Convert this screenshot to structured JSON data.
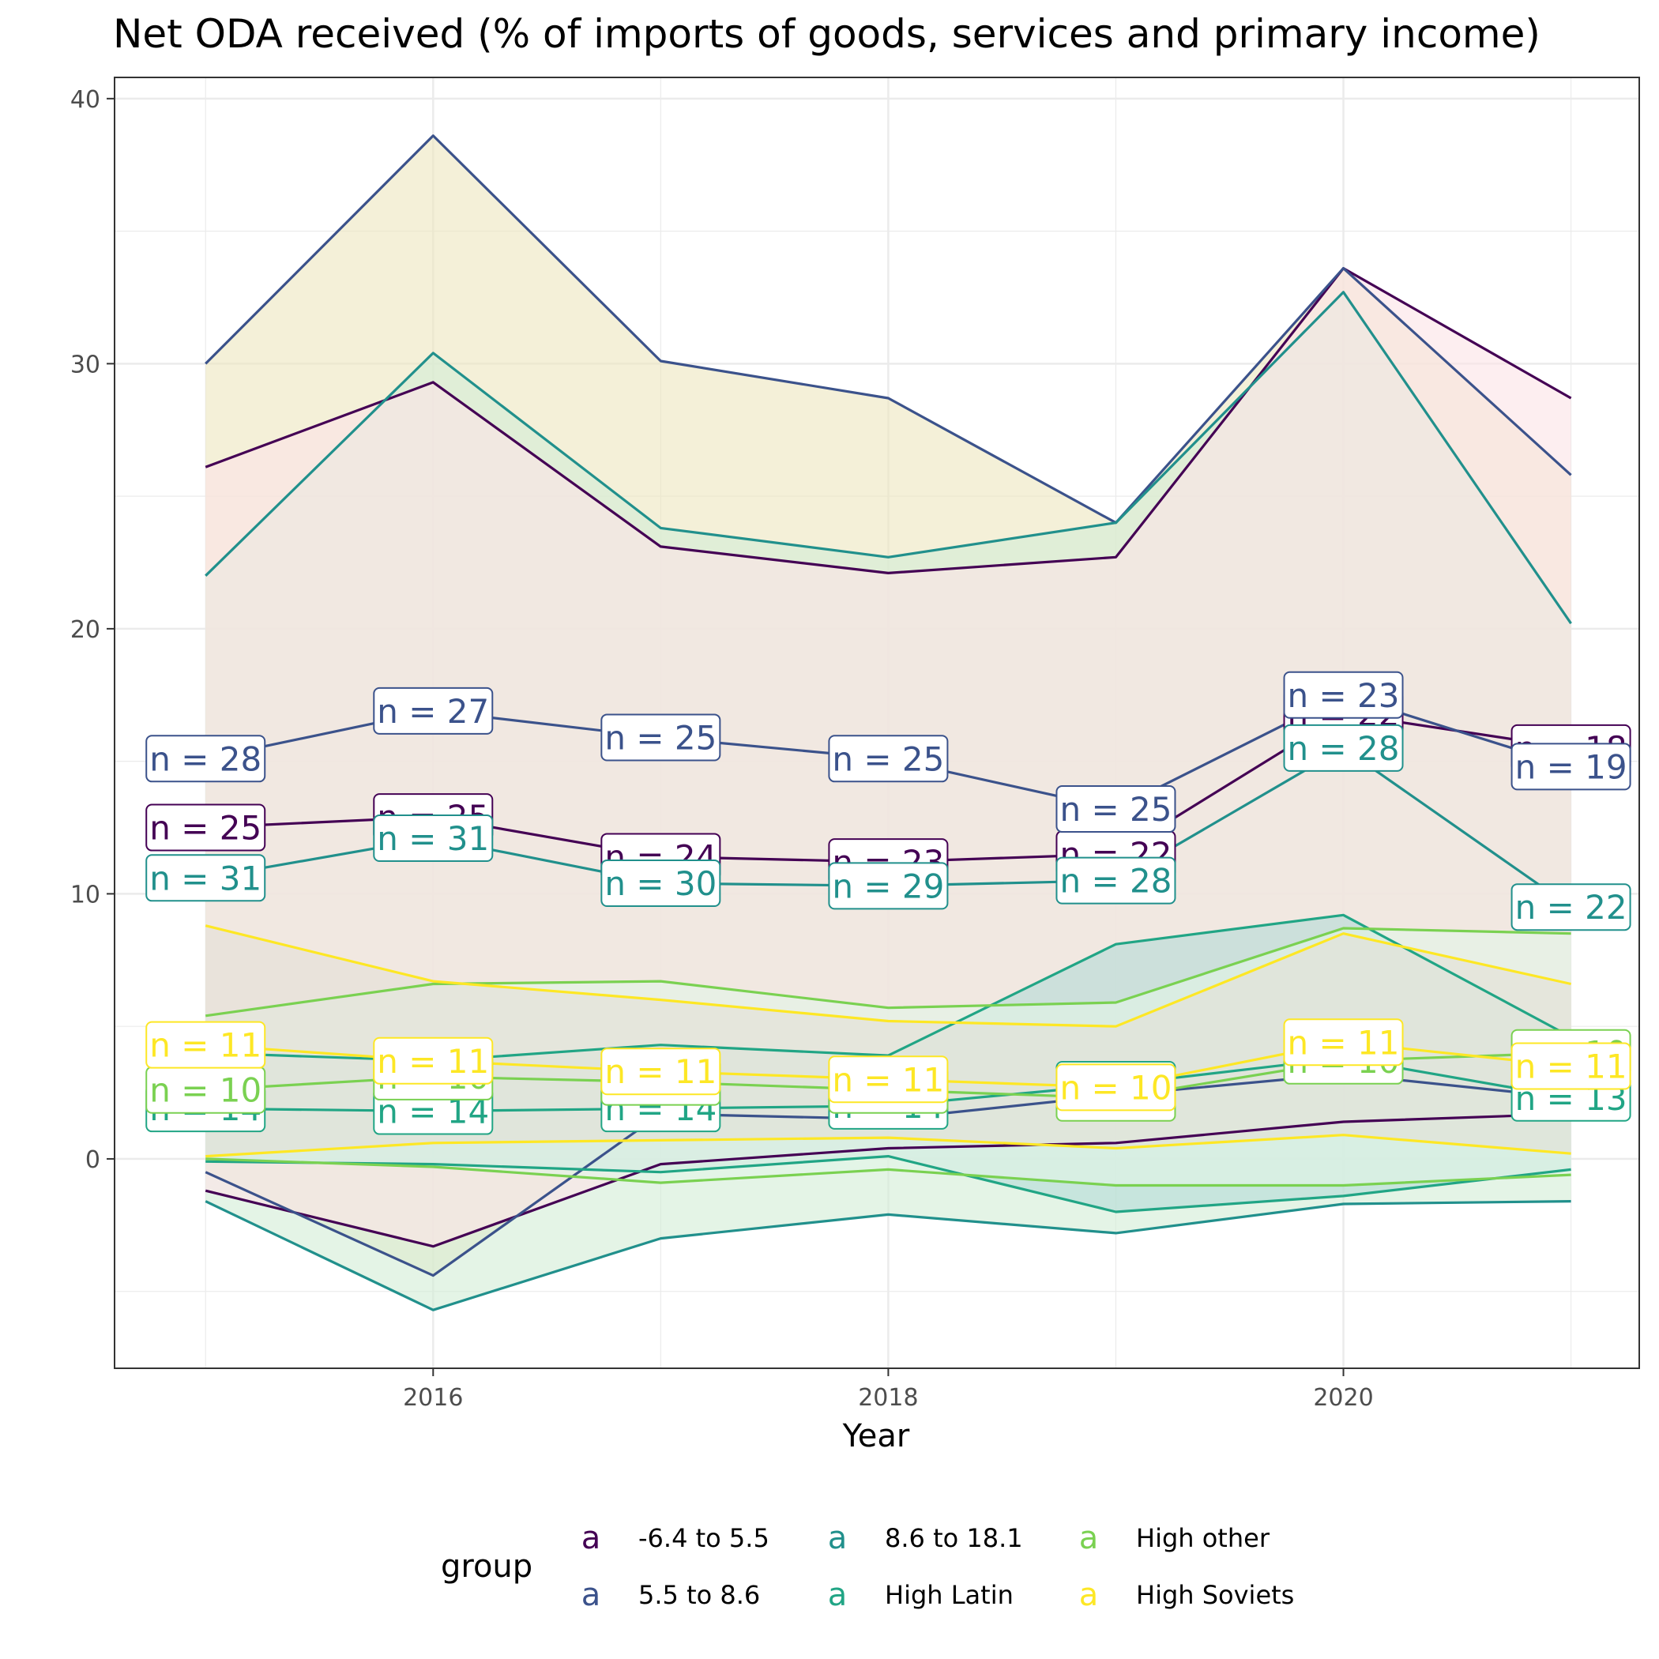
{
  "chart_data": {
    "type": "line",
    "title": "Net ODA received (% of imports of goods, services and primary income)",
    "xlabel": "Year",
    "ylabel": "",
    "x": [
      2015,
      2016,
      2017,
      2018,
      2019,
      2020,
      2021
    ],
    "xlim": [
      2014.6,
      2021.3
    ],
    "ylim": [
      -7.9,
      40.8
    ],
    "x_ticks": [
      2016,
      2018,
      2020
    ],
    "y_ticks": [
      0,
      10,
      20,
      30,
      40
    ],
    "grid": true,
    "legend": {
      "title": "group",
      "position": "bottom",
      "key_glyph": "a",
      "entries": [
        "-6.4 to 5.5",
        "5.5 to 8.6",
        "8.6 to 18.1",
        "High Latin",
        "High other",
        "High Soviets"
      ]
    },
    "series": [
      {
        "name": "-6.4 to 5.5",
        "color": "#440154",
        "upper": [
          26.1,
          29.3,
          23.1,
          22.1,
          22.7,
          33.6,
          28.7
        ],
        "mean": [
          12.5,
          12.9,
          11.4,
          11.2,
          11.5,
          16.8,
          15.5
        ],
        "lower": [
          -1.2,
          -3.3,
          -0.2,
          0.4,
          0.6,
          1.4,
          1.7
        ],
        "n_labels": [
          "n = 25",
          "n = 25",
          "n = 24",
          "n = 23",
          "n = 22",
          "n = 22",
          "n = 18"
        ],
        "fill": "#fbe3e6"
      },
      {
        "name": "5.5 to 8.6",
        "color": "#3b528b",
        "upper": [
          30.0,
          38.6,
          30.1,
          28.7,
          24.0,
          33.6,
          25.8
        ],
        "mean": [
          15.1,
          16.9,
          15.9,
          15.1,
          13.2,
          17.5,
          14.8
        ],
        "lower": [
          -0.5,
          -4.4,
          1.7,
          1.5,
          2.4,
          3.2,
          2.3
        ],
        "n_labels": [
          "n = 28",
          "n = 27",
          "n = 25",
          "n = 25",
          "n = 25",
          "n = 23",
          "n = 19"
        ],
        "fill": "#ede6c0"
      },
      {
        "name": "8.6 to 18.1",
        "color": "#21908c",
        "upper": [
          22.0,
          30.4,
          23.8,
          22.7,
          24.0,
          32.7,
          20.2
        ],
        "mean": [
          10.6,
          12.1,
          10.4,
          10.3,
          10.5,
          15.5,
          9.5
        ],
        "lower": [
          -1.6,
          -5.7,
          -3.0,
          -2.1,
          -2.8,
          -1.7,
          -1.6
        ],
        "n_labels": [
          "n = 31",
          "n = 31",
          "n = 30",
          "n = 29",
          "n = 28",
          "n = 28",
          "n = 22"
        ],
        "fill": "#d3eed6"
      },
      {
        "name": "High Latin",
        "color": "#21a585",
        "upper": [
          4.0,
          3.7,
          4.3,
          3.9,
          8.1,
          9.2,
          4.6
        ],
        "mean": [
          1.9,
          1.8,
          1.9,
          2.0,
          2.8,
          3.8,
          2.3
        ],
        "lower": [
          -0.1,
          -0.2,
          -0.5,
          0.1,
          -2.0,
          -1.4,
          -0.4
        ],
        "n_labels": [
          "n = 14",
          "n = 14",
          "n = 14",
          "n = 14",
          "n = 14",
          "n = 14",
          "n = 13"
        ],
        "fill": "#b4dbd6"
      },
      {
        "name": "High other",
        "color": "#7ad151",
        "upper": [
          5.4,
          6.6,
          6.7,
          5.7,
          5.9,
          8.7,
          8.5
        ],
        "mean": [
          2.6,
          3.1,
          2.9,
          2.6,
          2.3,
          3.7,
          4.0
        ],
        "lower": [
          0.0,
          -0.3,
          -0.9,
          -0.4,
          -1.0,
          -1.0,
          -0.6
        ],
        "n_labels": [
          "n = 10",
          "n = 10",
          "n = 10",
          "n = 10",
          "n = 10",
          "n = 10",
          "n = 10"
        ],
        "fill": "#e2f5e6"
      },
      {
        "name": "High Soviets",
        "color": "#fde725",
        "upper": [
          8.8,
          6.7,
          6.0,
          5.2,
          5.0,
          8.5,
          6.6
        ],
        "mean": [
          4.3,
          3.7,
          3.3,
          3.0,
          2.7,
          4.4,
          3.5
        ],
        "lower": [
          0.1,
          0.6,
          0.7,
          0.8,
          0.4,
          0.9,
          0.2
        ],
        "n_labels": [
          "n = 11",
          "n = 11",
          "n = 11",
          "n = 11",
          "n = 10",
          "n = 11",
          "n = 11"
        ],
        "fill": "#e4e0d6"
      }
    ]
  }
}
